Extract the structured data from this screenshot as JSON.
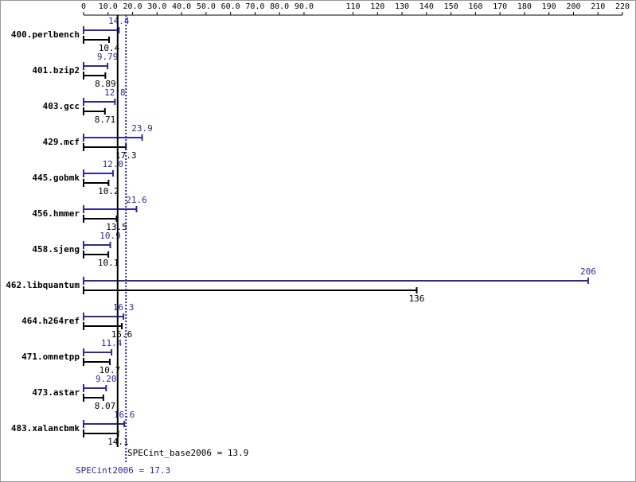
{
  "chart_data": {
    "type": "bar",
    "orientation": "horizontal",
    "categories": [
      "400.perlbench",
      "401.bzip2",
      "403.gcc",
      "429.mcf",
      "445.gobmk",
      "456.hmmer",
      "458.sjeng",
      "462.libquantum",
      "464.h264ref",
      "471.omnetpp",
      "473.astar",
      "483.xalancbmk"
    ],
    "series": [
      {
        "color": "#2b2b99",
        "values": [
          14.4,
          9.79,
          12.8,
          23.9,
          12.0,
          21.6,
          10.9,
          206,
          16.3,
          11.4,
          9.2,
          16.6
        ],
        "value_labels": [
          "14.4",
          "9.79",
          "12.8",
          "23.9",
          "12.0",
          "21.6",
          "10.9",
          "206",
          "16.3",
          "11.4",
          "9.20",
          "16.6"
        ]
      },
      {
        "color": "#000000",
        "values": [
          10.4,
          8.89,
          8.71,
          17.3,
          10.2,
          13.5,
          10.1,
          136,
          15.6,
          10.7,
          8.07,
          14.1
        ]
      }
    ],
    "xlim": [
      0,
      220
    ],
    "xticks": [
      0,
      {
        "value": 10,
        "label": "10.0"
      },
      {
        "value": 20,
        "label": "20.0"
      },
      {
        "value": 30,
        "label": "30.0"
      },
      {
        "value": 40,
        "label": "40.0"
      },
      {
        "value": 50,
        "label": "50.0"
      },
      {
        "value": 60,
        "label": "60.0"
      },
      {
        "value": 70,
        "label": "70.0"
      },
      {
        "value": 80,
        "label": "80.0"
      },
      {
        "value": 90,
        "label": "90.0"
      },
      110,
      120,
      130,
      140,
      150,
      160,
      170,
      180,
      190,
      200,
      210,
      220
    ],
    "reference_lines": [
      {
        "label": "SPECint_base2006 = 13.9",
        "value": 13.9,
        "color": "#000000",
        "style": "solid"
      },
      {
        "label": "SPECint2006 = 17.3",
        "value": 17.3,
        "color": "#2b2b99",
        "style": "dotted"
      }
    ]
  }
}
